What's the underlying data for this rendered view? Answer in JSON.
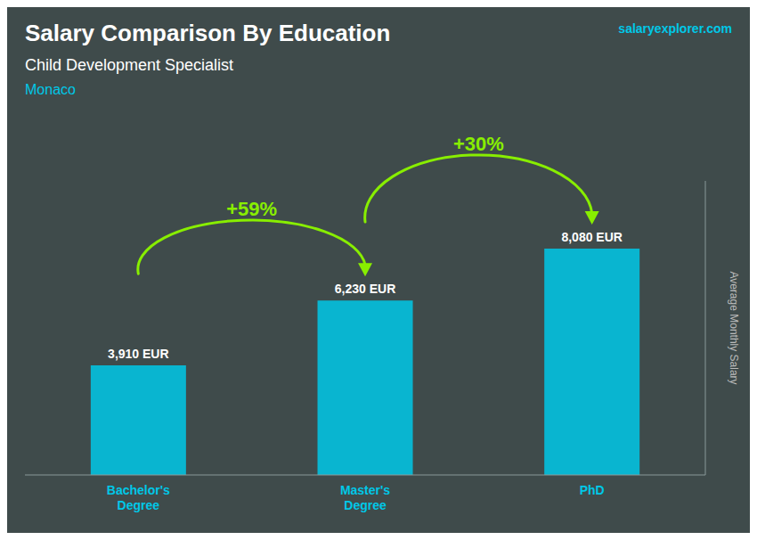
{
  "chart_data": {
    "type": "bar",
    "title": "Salary Comparison By Education",
    "subtitle": "Child Development Specialist",
    "y_label": "Average Monthly Salary",
    "categories": [
      "Bachelor's\nDegree",
      "Master's\nDegree",
      "PhD"
    ],
    "values": [
      3910,
      6230,
      8080
    ],
    "value_labels": [
      "3,910 EUR",
      "6,230 EUR",
      "8,080 EUR"
    ],
    "data_labels": true,
    "color": "#00c8e8",
    "ylim": [
      0,
      10500
    ],
    "tick_labels": "x",
    "grid": false,
    "annotations": [
      {
        "text": "Monaco"
      },
      {
        "text": "salaryexplorer.com"
      },
      {
        "text": "+59%",
        "from": "Bachelor's\nDegree",
        "to": "Master's\nDegree",
        "color": "#88ee00"
      },
      {
        "text": "+30%",
        "from": "Master's\nDegree",
        "to": "PhD",
        "color": "#88ee00"
      }
    ]
  }
}
